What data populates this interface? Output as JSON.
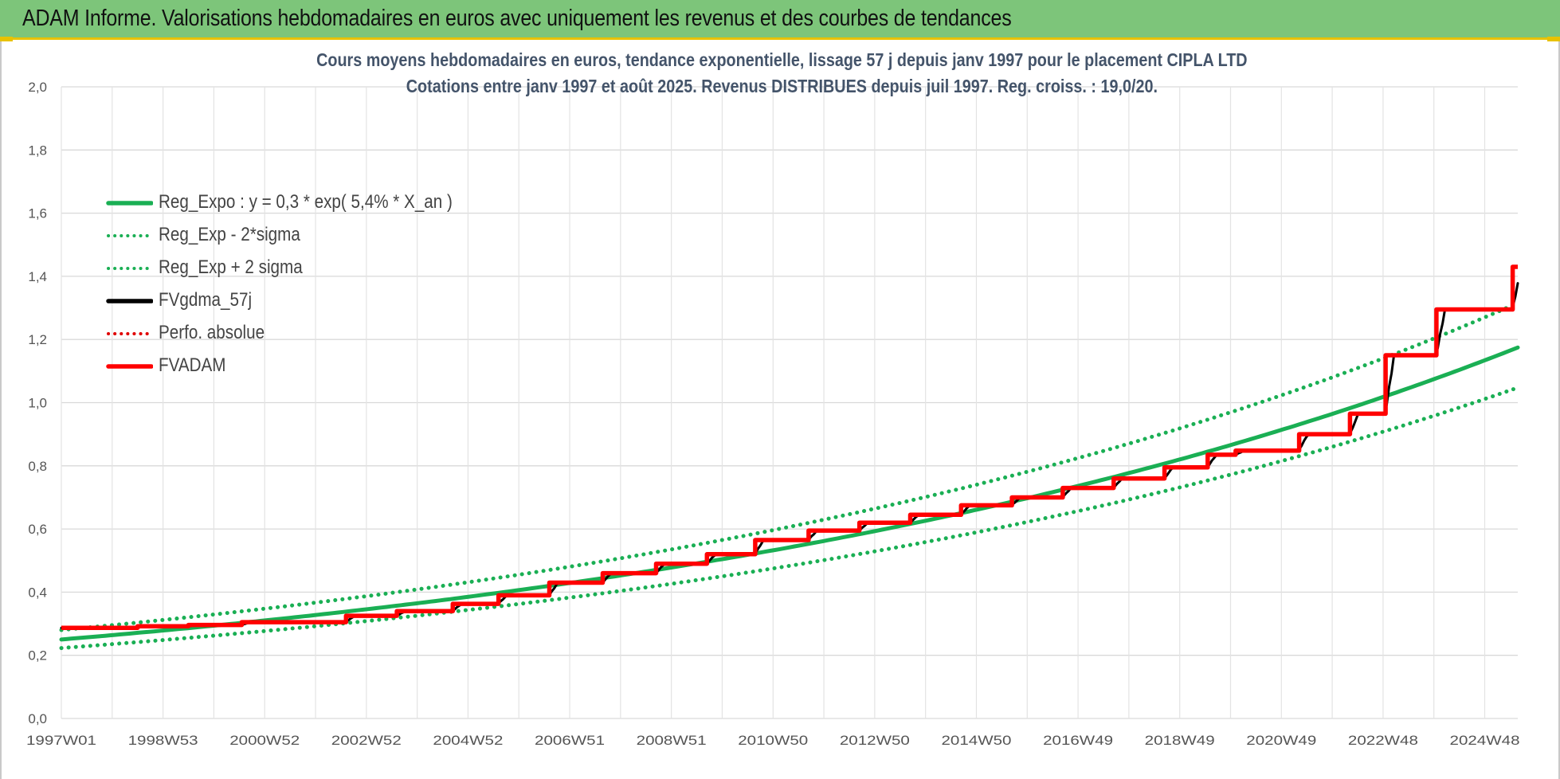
{
  "header": {
    "title": "ADAM Informe. Valorisations hebdomadaires en euros avec uniquement les revenus et des courbes de tendances"
  },
  "chart_data": {
    "type": "line",
    "title": "Cours moyens hebdomadaires en euros, tendance exponentielle, lissage 57 j depuis janv 1997 pour le placement CIPLA LTD",
    "subtitle": "Cotations entre janv 1997 et août 2025.  Revenus DISTRIBUES depuis juil 1997.  Reg. croiss. : 19,0/20.",
    "xlabel": "",
    "ylabel": "",
    "ylim": [
      0,
      2
    ],
    "x_range": [
      1997.0,
      2025.65
    ],
    "yticks": [
      "0,0",
      "0,2",
      "0,4",
      "0,6",
      "0,8",
      "1,0",
      "1,2",
      "1,4",
      "1,6",
      "1,8",
      "2,0"
    ],
    "xticks": [
      {
        "label": "1997W01",
        "year": 1997.0
      },
      {
        "label": "1998W53",
        "year": 1999.0
      },
      {
        "label": "2000W52",
        "year": 2001.0
      },
      {
        "label": "2002W52",
        "year": 2003.0
      },
      {
        "label": "2004W52",
        "year": 2005.0
      },
      {
        "label": "2006W51",
        "year": 2007.0
      },
      {
        "label": "2008W51",
        "year": 2009.0
      },
      {
        "label": "2010W50",
        "year": 2011.0
      },
      {
        "label": "2012W50",
        "year": 2013.0
      },
      {
        "label": "2014W50",
        "year": 2015.0
      },
      {
        "label": "2016W49",
        "year": 2017.0
      },
      {
        "label": "2018W49",
        "year": 2019.0
      },
      {
        "label": "2020W49",
        "year": 2021.0
      },
      {
        "label": "2022W48",
        "year": 2023.0
      },
      {
        "label": "2024W48",
        "year": 2025.0
      }
    ],
    "grid": true,
    "legend_position": "top-left",
    "series": [
      {
        "name": "Reg_Expo : y = 0,3 * exp( 5,4% *  X_an )",
        "color": "#1aaf54",
        "style": "solid",
        "kind": "exp",
        "a": 0.25,
        "r": 0.054
      },
      {
        "name": "Reg_Exp - 2*sigma",
        "color": "#1aaf54",
        "style": "dotted",
        "kind": "exp",
        "a": 0.223,
        "r": 0.054
      },
      {
        "name": "Reg_Exp + 2 sigma",
        "color": "#1aaf54",
        "style": "dotted",
        "kind": "exp",
        "a": 0.28,
        "r": 0.054
      },
      {
        "name": "FVgdma_57j",
        "color": "#000000",
        "style": "solid",
        "kind": "smooth"
      },
      {
        "name": "Perfo. absolue",
        "color": "#e00000",
        "style": "dotted",
        "kind": "hidden"
      },
      {
        "name": "FVADAM",
        "color": "#ff0000",
        "style": "solid",
        "kind": "step"
      }
    ],
    "fvadam_steps": [
      {
        "year": 1997.0,
        "value": 0.287
      },
      {
        "year": 1998.5,
        "value": 0.292
      },
      {
        "year": 1999.5,
        "value": 0.296
      },
      {
        "year": 2000.55,
        "value": 0.305
      },
      {
        "year": 2002.6,
        "value": 0.325
      },
      {
        "year": 2003.6,
        "value": 0.34
      },
      {
        "year": 2004.7,
        "value": 0.363
      },
      {
        "year": 2005.6,
        "value": 0.39
      },
      {
        "year": 2006.6,
        "value": 0.43
      },
      {
        "year": 2007.65,
        "value": 0.46
      },
      {
        "year": 2008.7,
        "value": 0.49
      },
      {
        "year": 2009.7,
        "value": 0.52
      },
      {
        "year": 2010.65,
        "value": 0.565
      },
      {
        "year": 2011.7,
        "value": 0.595
      },
      {
        "year": 2012.7,
        "value": 0.62
      },
      {
        "year": 2013.7,
        "value": 0.645
      },
      {
        "year": 2014.7,
        "value": 0.675
      },
      {
        "year": 2015.7,
        "value": 0.7
      },
      {
        "year": 2016.7,
        "value": 0.73
      },
      {
        "year": 2017.7,
        "value": 0.76
      },
      {
        "year": 2018.7,
        "value": 0.795
      },
      {
        "year": 2019.55,
        "value": 0.835
      },
      {
        "year": 2020.1,
        "value": 0.848
      },
      {
        "year": 2021.35,
        "value": 0.9
      },
      {
        "year": 2022.35,
        "value": 0.965
      },
      {
        "year": 2023.05,
        "value": 1.15
      },
      {
        "year": 2024.05,
        "value": 1.295
      },
      {
        "year": 2025.55,
        "value": 1.43
      }
    ]
  }
}
